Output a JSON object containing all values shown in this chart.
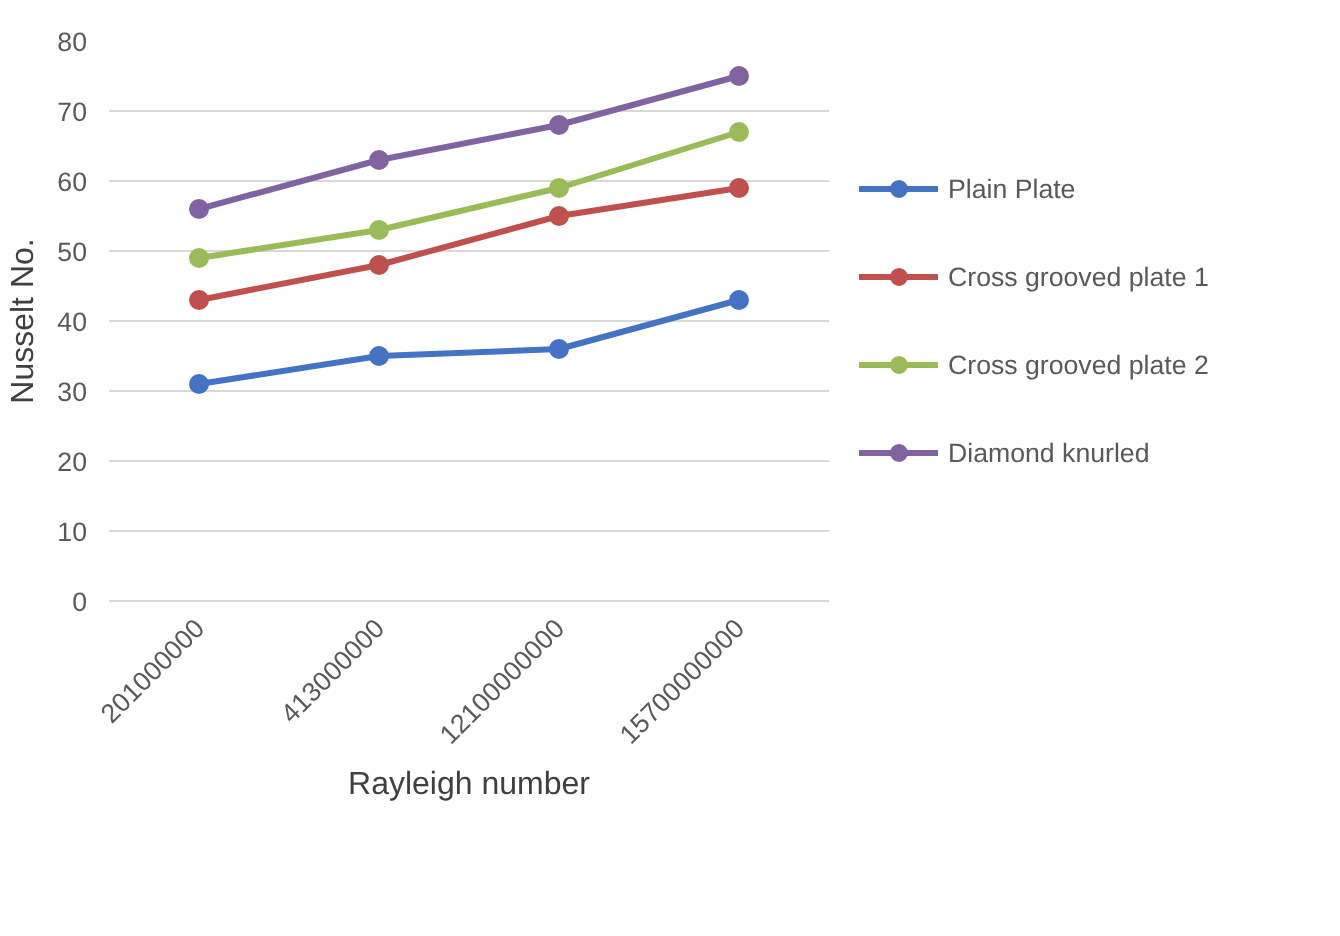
{
  "chart_data": {
    "type": "line",
    "xlabel": "Rayleigh number",
    "ylabel": "Nusselt No.",
    "categories": [
      "201000000",
      "413000000",
      "12100000000",
      "15700000000"
    ],
    "ylim": [
      0,
      80
    ],
    "yticks": [
      0,
      10,
      20,
      30,
      40,
      50,
      60,
      70,
      80
    ],
    "grid": "y",
    "legend": "right",
    "marker": "circle",
    "line_style": "solid",
    "series": [
      {
        "name": "Plain Plate",
        "color": "#4472c4",
        "values": [
          31,
          35,
          36,
          43
        ]
      },
      {
        "name": "Cross grooved plate 1",
        "color": "#c0504d",
        "values": [
          43,
          48,
          55,
          59
        ]
      },
      {
        "name": "Cross grooved plate 2",
        "color": "#9bbb59",
        "values": [
          49,
          53,
          59,
          67
        ]
      },
      {
        "name": "Diamond knurled",
        "color": "#8064a2",
        "values": [
          56,
          63,
          68,
          75
        ]
      }
    ]
  }
}
